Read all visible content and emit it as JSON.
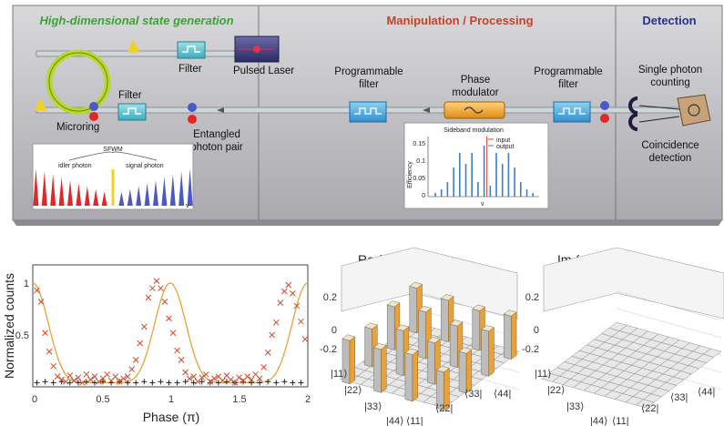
{
  "schematic": {
    "sections": {
      "generation": "High-dimensional state generation",
      "manipulation": "Manipulation / Processing",
      "detection": "Detection"
    },
    "labels": {
      "filter_top": "Filter",
      "filter_bottom": "Filter",
      "pulsed_laser": "Pulsed Laser",
      "microring": "Microring",
      "entangled_1": "Entangled",
      "entangled_2": "photon pair",
      "prog_filter_left_1": "Programmable",
      "prog_filter_left_2": "filter",
      "phase_mod_1": "Phase",
      "phase_mod_2": "modulator",
      "prog_filter_right_1": "Programmable",
      "prog_filter_right_2": "filter",
      "spc_1": "Single photon",
      "spc_2": "counting",
      "coinc_1": "Coincidence",
      "coinc_2": "detection"
    },
    "sfwm": {
      "title": "SFWM",
      "idler": "idler photon",
      "signal": "signal photon",
      "axis": "ν"
    },
    "sideband": {
      "title": "Sideband modulation",
      "ylabel": "Efficiency",
      "xlabel": "ν",
      "yticks": [
        "0.15",
        "0.1",
        "0.05",
        "0"
      ],
      "legend": [
        "input",
        "output"
      ],
      "colors": {
        "input": "#e0442a",
        "output": "#3b7fc7"
      }
    }
  },
  "chart_data": [
    {
      "type": "line",
      "xlabel": "Phase (π)",
      "ylabel": "Normalized counts",
      "xlim": [
        0,
        2
      ],
      "ylim": [
        0,
        1
      ],
      "xticks": [
        "0",
        "0.5",
        "1",
        "1.5",
        "2"
      ],
      "yticks": [
        "0",
        "0.5",
        "1"
      ],
      "series": [
        {
          "marker": "x",
          "color": "#d04a2a",
          "x": [
            0.03,
            0.06,
            0.09,
            0.12,
            0.15,
            0.18,
            0.21,
            0.24,
            0.27,
            0.3,
            0.33,
            0.36,
            0.39,
            0.42,
            0.45,
            0.48,
            0.51,
            0.54,
            0.57,
            0.6,
            0.63,
            0.66,
            0.69,
            0.72,
            0.75,
            0.78,
            0.81,
            0.84,
            0.87,
            0.9,
            0.93,
            0.96,
            0.99,
            1.02,
            1.05,
            1.08,
            1.11,
            1.14,
            1.17,
            1.2,
            1.23,
            1.26,
            1.29,
            1.32,
            1.35,
            1.38,
            1.41,
            1.44,
            1.47,
            1.5,
            1.53,
            1.56,
            1.59,
            1.62,
            1.65,
            1.68,
            1.71,
            1.74,
            1.77,
            1.8,
            1.83,
            1.86,
            1.89,
            1.92,
            1.95,
            1.98
          ],
          "y": [
            0.93,
            0.82,
            0.52,
            0.34,
            0.2,
            0.1,
            0.07,
            0.05,
            0.11,
            0.06,
            0.09,
            0.04,
            0.12,
            0.07,
            0.1,
            0.05,
            0.08,
            0.12,
            0.06,
            0.1,
            0.05,
            0.08,
            0.1,
            0.17,
            0.26,
            0.42,
            0.58,
            0.86,
            0.95,
            1.02,
            0.95,
            0.82,
            0.66,
            0.52,
            0.35,
            0.26,
            0.14,
            0.08,
            0.1,
            0.05,
            0.09,
            0.12,
            0.05,
            0.08,
            0.1,
            0.06,
            0.11,
            0.07,
            0.04,
            0.09,
            0.06,
            0.1,
            0.07,
            0.12,
            0.08,
            0.19,
            0.33,
            0.5,
            0.62,
            0.81,
            0.92,
            0.98,
            0.9,
            0.78,
            0.63,
            0.46
          ]
        },
        {
          "marker": "+",
          "color": "#222222",
          "x": [
            0.03,
            0.09,
            0.15,
            0.21,
            0.27,
            0.33,
            0.39,
            0.45,
            0.51,
            0.57,
            0.63,
            0.69,
            0.75,
            0.81,
            0.87,
            0.93,
            0.99,
            1.05,
            1.11,
            1.17,
            1.23,
            1.29,
            1.35,
            1.41,
            1.47,
            1.53,
            1.59,
            1.65,
            1.71,
            1.77,
            1.83,
            1.89,
            1.95
          ],
          "y": [
            0.04,
            0.05,
            0.04,
            0.05,
            0.04,
            0.04,
            0.05,
            0.04,
            0.05,
            0.04,
            0.05,
            0.04,
            0.04,
            0.05,
            0.04,
            0.05,
            0.04,
            0.04,
            0.05,
            0.04,
            0.05,
            0.04,
            0.04,
            0.05,
            0.04,
            0.05,
            0.04,
            0.04,
            0.05,
            0.04,
            0.05,
            0.04,
            0.04
          ]
        },
        {
          "type": "fit",
          "color": "#e8a23a",
          "period": 1,
          "offset": 0.04,
          "amplitude": 0.96
        }
      ]
    },
    {
      "type": "bar3d",
      "title": "Re (ρ)",
      "zticks": [
        "0.2",
        "0",
        "-0.2"
      ],
      "row_labels": [
        "|11⟩",
        "|22⟩",
        "|33⟩",
        "|44⟩"
      ],
      "col_labels": [
        "⟨11|",
        "⟨22|",
        "⟨33|",
        "⟨44|"
      ],
      "grid_size": 10,
      "diag_values": [
        0.26,
        0.24,
        0.25,
        0.23,
        0.27,
        0.22,
        0.25,
        0.24,
        0.26,
        0.25
      ]
    },
    {
      "type": "bar3d",
      "title": "Im (ρ)",
      "zticks": [
        "0.2",
        "0",
        "-0.2"
      ],
      "row_labels": [
        "|11⟩",
        "|22⟩",
        "|33⟩",
        "|44⟩"
      ],
      "col_labels": [
        "⟨11|",
        "⟨22|",
        "⟨33|",
        "⟨44|"
      ],
      "grid_size": 10
    }
  ]
}
